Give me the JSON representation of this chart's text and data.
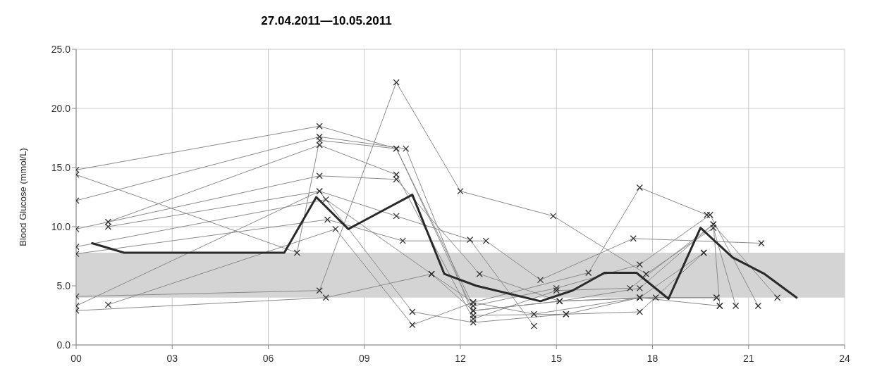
{
  "chart_data": {
    "type": "line",
    "title": "27.04.2011—10.05.2011",
    "ylabel": "Blood Glucose (mmol/L)",
    "xlim": [
      0,
      24
    ],
    "xticks": [
      {
        "value": 0,
        "label": "00"
      },
      {
        "value": 3,
        "label": "03"
      },
      {
        "value": 6,
        "label": "06"
      },
      {
        "value": 9,
        "label": "09"
      },
      {
        "value": 12,
        "label": "12"
      },
      {
        "value": 15,
        "label": "15"
      },
      {
        "value": 18,
        "label": "18"
      },
      {
        "value": 21,
        "label": "21"
      },
      {
        "value": 24,
        "label": "24"
      }
    ],
    "ylim": [
      0,
      25
    ],
    "yticks": [
      {
        "value": 0,
        "label": "0.0"
      },
      {
        "value": 5,
        "label": "5.0"
      },
      {
        "value": 10,
        "label": "10.0"
      },
      {
        "value": 15,
        "label": "15.0"
      },
      {
        "value": 20,
        "label": "20.0"
      },
      {
        "value": 25,
        "label": "25.0"
      }
    ],
    "grid": true,
    "marker": "cross",
    "line_style": "solid",
    "bands": [
      {
        "axis": "y",
        "from": 4.0,
        "to": 7.8,
        "color": "#d4d4d4"
      }
    ],
    "series": [
      {
        "color": "#8a8a8a",
        "x": [
          0,
          7.6,
          10.0,
          12.4,
          15.0,
          17.6,
          19.8,
          21.3
        ],
        "values": [
          14.8,
          18.5,
          16.6,
          3.3,
          4.8,
          6.8,
          11.0,
          3.3
        ]
      },
      {
        "color": "#8a8a8a",
        "x": [
          0,
          6.9,
          7.6,
          10.0,
          12.4,
          15.1,
          17.6,
          20.0
        ],
        "values": [
          14.4,
          7.8,
          17.3,
          16.6,
          2.9,
          3.7,
          4.0,
          4.0
        ]
      },
      {
        "color": "#8a8a8a",
        "x": [
          0,
          7.6,
          10.3,
          12.4,
          15.3,
          17.6,
          19.6
        ],
        "values": [
          12.2,
          17.6,
          16.6,
          2.5,
          2.6,
          4.0,
          7.8
        ]
      },
      {
        "color": "#8a8a8a",
        "x": [
          1.0,
          7.6,
          10.0,
          12.4,
          15.0,
          17.3,
          19.9,
          20.1
        ],
        "values": [
          10.4,
          16.9,
          14.4,
          2.2,
          4.6,
          4.8,
          10.2,
          3.3
        ]
      },
      {
        "color": "#8a8a8a",
        "x": [
          0,
          7.6,
          10.0,
          12.0,
          14.9,
          17.8,
          19.9,
          20.6
        ],
        "values": [
          4.1,
          4.6,
          22.2,
          13.0,
          10.9,
          6.0,
          9.9,
          3.3
        ]
      },
      {
        "color": "#8a8a8a",
        "x": [
          1.0,
          7.6,
          10.0,
          12.3,
          14.3
        ],
        "values": [
          10.0,
          13.0,
          10.9,
          8.9,
          1.6
        ]
      },
      {
        "color": "#8a8a8a",
        "x": [
          0,
          7.8,
          11.1,
          12.4,
          16.0,
          17.6,
          19.7
        ],
        "values": [
          8.3,
          12.3,
          6.0,
          3.6,
          6.1,
          13.3,
          11.0
        ]
      },
      {
        "color": "#8a8a8a",
        "x": [
          0,
          7.85,
          10.2,
          12.8,
          14.5,
          17.4,
          21.4
        ],
        "values": [
          7.7,
          10.6,
          8.8,
          8.8,
          5.5,
          9.0,
          8.6
        ]
      },
      {
        "color": "#8a8a8a",
        "x": [
          0,
          7.6,
          10.0,
          12.6,
          15.1,
          17.6,
          19.9,
          21.9
        ],
        "values": [
          9.8,
          14.3,
          14.0,
          6.0,
          3.7,
          4.8,
          10.2,
          4.0
        ]
      },
      {
        "color": "#8a8a8a",
        "x": [
          0,
          7.6,
          10.5,
          12.4,
          15.3,
          17.6,
          19.6
        ],
        "values": [
          3.3,
          13.0,
          2.8,
          1.9,
          2.6,
          2.8,
          7.8
        ]
      },
      {
        "color": "#8a8a8a",
        "x": [
          1.0,
          8.1,
          10.5,
          12.4,
          14.3,
          17.6,
          20.1
        ],
        "values": [
          3.4,
          9.8,
          1.7,
          3.6,
          2.6,
          4.0,
          3.3
        ]
      },
      {
        "color": "#8a8a8a",
        "x": [
          0,
          7.8,
          11.1,
          12.4,
          15.1,
          18.1,
          20.0
        ],
        "values": [
          2.9,
          4.0,
          6.0,
          2.9,
          3.7,
          4.0,
          4.0
        ]
      },
      {
        "color": "#2a2a2a",
        "marker": "none",
        "x": [
          0.5,
          1.5,
          6.5,
          7.5,
          8.5,
          10.5,
          11.5,
          12.5,
          14.5,
          15.5,
          16.5,
          17.5,
          18.5,
          19.5,
          20.5,
          21.5,
          22.5
        ],
        "values": [
          8.6,
          7.8,
          7.8,
          12.5,
          9.8,
          12.7,
          6.0,
          5.0,
          3.7,
          4.6,
          6.1,
          6.1,
          3.9,
          9.9,
          7.4,
          6.0,
          4.0
        ]
      }
    ]
  }
}
